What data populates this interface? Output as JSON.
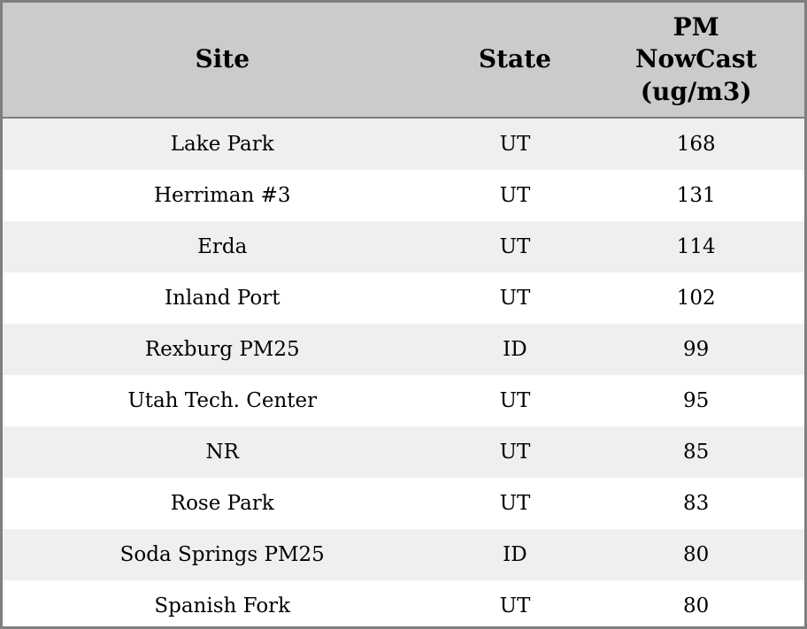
{
  "table": {
    "headers": {
      "site": "Site",
      "state": "State",
      "pm": "PM\nNowCast\n(ug/m3)"
    },
    "rows": [
      {
        "site": "Lake Park",
        "state": "UT",
        "pm": "168"
      },
      {
        "site": "Herriman #3",
        "state": "UT",
        "pm": "131"
      },
      {
        "site": "Erda",
        "state": "UT",
        "pm": "114"
      },
      {
        "site": "Inland Port",
        "state": "UT",
        "pm": "102"
      },
      {
        "site": "Rexburg PM25",
        "state": "ID",
        "pm": "99"
      },
      {
        "site": "Utah Tech. Center",
        "state": "UT",
        "pm": "95"
      },
      {
        "site": "NR",
        "state": "UT",
        "pm": "85"
      },
      {
        "site": "Rose Park",
        "state": "UT",
        "pm": "83"
      },
      {
        "site": "Soda Springs PM25",
        "state": "ID",
        "pm": "80"
      },
      {
        "site": "Spanish Fork",
        "state": "UT",
        "pm": "80"
      }
    ]
  },
  "colors": {
    "header_bg": "#cbcbcb",
    "row_alt_bg": "#efefef",
    "row_bg": "#ffffff",
    "border": "#7f7f7f",
    "text": "#000000"
  },
  "chart_data": {
    "type": "table",
    "title": "",
    "columns": [
      "Site",
      "State",
      "PM NowCast (ug/m3)"
    ],
    "rows": [
      [
        "Lake Park",
        "UT",
        168
      ],
      [
        "Herriman #3",
        "UT",
        131
      ],
      [
        "Erda",
        "UT",
        114
      ],
      [
        "Inland Port",
        "UT",
        102
      ],
      [
        "Rexburg PM25",
        "ID",
        99
      ],
      [
        "Utah Tech. Center",
        "UT",
        95
      ],
      [
        "NR",
        "UT",
        85
      ],
      [
        "Rose Park",
        "UT",
        83
      ],
      [
        "Soda Springs PM25",
        "ID",
        80
      ],
      [
        "Spanish Fork",
        "UT",
        80
      ]
    ]
  }
}
